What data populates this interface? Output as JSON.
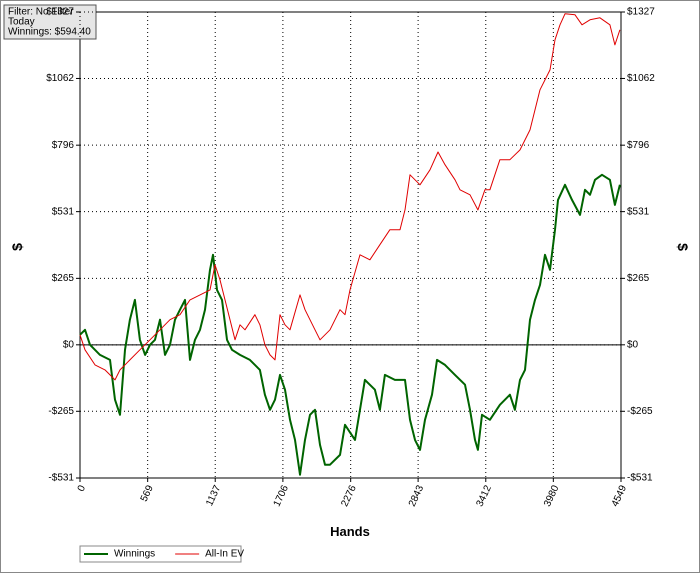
{
  "chart_data": {
    "type": "line",
    "filter_lines": [
      "Filter: No Filter",
      "Today",
      "Winnings: $594.40"
    ],
    "xlabel": "Hands",
    "ylabel": "$",
    "y2label": "$",
    "xlim": [
      0,
      4549
    ],
    "xticks": [
      0,
      569,
      1137,
      1706,
      2276,
      2843,
      3412,
      3980,
      4549
    ],
    "ylim": [
      -531,
      1327
    ],
    "yticks": [
      {
        "value": 1327,
        "label": "$1327"
      },
      {
        "value": 1062,
        "label": "$1062"
      },
      {
        "value": 796,
        "label": "$796"
      },
      {
        "value": 531,
        "label": "$531"
      },
      {
        "value": 265,
        "label": "$265"
      },
      {
        "value": 0,
        "label": "$0"
      },
      {
        "value": -265,
        "label": "-$265"
      },
      {
        "value": -531,
        "label": "-$531"
      }
    ],
    "grid": true,
    "legend": "bottom-left",
    "series": [
      {
        "name": "Winnings",
        "color": "#006400",
        "x": [
          0,
          42,
          84,
          168,
          252,
          294,
          336,
          378,
          420,
          462,
          504,
          547,
          589,
          631,
          673,
          715,
          757,
          799,
          841,
          883,
          925,
          967,
          1009,
          1051,
          1093,
          1118,
          1152,
          1194,
          1236,
          1278,
          1345,
          1429,
          1513,
          1555,
          1598,
          1640,
          1682,
          1724,
          1766,
          1808,
          1850,
          1892,
          1934,
          1976,
          2018,
          2060,
          2102,
          2186,
          2228,
          2312,
          2396,
          2480,
          2522,
          2564,
          2648,
          2733,
          2775,
          2817,
          2859,
          2901,
          2960,
          3002,
          3069,
          3153,
          3237,
          3279,
          3321,
          3346,
          3380,
          3447,
          3531,
          3615,
          3657,
          3700,
          3742,
          3784,
          3826,
          3868,
          3910,
          3952,
          3994,
          4019,
          4078,
          4137,
          4204,
          4246,
          4288,
          4330,
          4389,
          4456,
          4498,
          4540
        ],
        "values": [
          40,
          60,
          0,
          -40,
          -60,
          -219,
          -279,
          -20,
          100,
          179,
          20,
          -40,
          0,
          20,
          100,
          -40,
          0,
          100,
          140,
          179,
          -60,
          20,
          60,
          140,
          299,
          359,
          219,
          179,
          20,
          -20,
          -40,
          -60,
          -100,
          -199,
          -259,
          -219,
          -120,
          -179,
          -299,
          -379,
          -518,
          -379,
          -279,
          -259,
          -399,
          -478,
          -478,
          -439,
          -319,
          -379,
          -140,
          -179,
          -259,
          -120,
          -140,
          -140,
          -299,
          -379,
          -419,
          -299,
          -199,
          -60,
          -80,
          -120,
          -159,
          -259,
          -379,
          -419,
          -279,
          -299,
          -239,
          -199,
          -259,
          -140,
          -100,
          100,
          179,
          239,
          359,
          299,
          459,
          578,
          638,
          578,
          518,
          618,
          598,
          658,
          678,
          658,
          558,
          638
        ]
      },
      {
        "name": "All-In EV",
        "color": "#e00000",
        "x": [
          0,
          42,
          126,
          210,
          294,
          336,
          420,
          504,
          589,
          673,
          757,
          841,
          925,
          1009,
          1093,
          1135,
          1177,
          1219,
          1261,
          1303,
          1345,
          1387,
          1471,
          1513,
          1555,
          1598,
          1640,
          1682,
          1724,
          1766,
          1850,
          1892,
          1976,
          2018,
          2102,
          2186,
          2228,
          2270,
          2354,
          2438,
          2522,
          2606,
          2691,
          2733,
          2775,
          2859,
          2943,
          3010,
          3069,
          3153,
          3195,
          3279,
          3346,
          3405,
          3447,
          3531,
          3615,
          3700,
          3784,
          3868,
          3952,
          3994,
          4036,
          4078,
          4162,
          4221,
          4288,
          4372,
          4456,
          4498,
          4540
        ],
        "values": [
          40,
          -20,
          -80,
          -100,
          -140,
          -100,
          -60,
          -20,
          20,
          60,
          100,
          120,
          179,
          199,
          219,
          319,
          259,
          179,
          100,
          20,
          80,
          60,
          120,
          80,
          0,
          -40,
          -60,
          120,
          80,
          60,
          199,
          140,
          60,
          20,
          60,
          140,
          120,
          219,
          359,
          339,
          399,
          459,
          459,
          538,
          678,
          638,
          698,
          769,
          718,
          658,
          618,
          598,
          538,
          618,
          618,
          738,
          738,
          777,
          857,
          1017,
          1096,
          1216,
          1276,
          1320,
          1316,
          1276,
          1296,
          1304,
          1276,
          1196,
          1256
        ]
      }
    ]
  }
}
